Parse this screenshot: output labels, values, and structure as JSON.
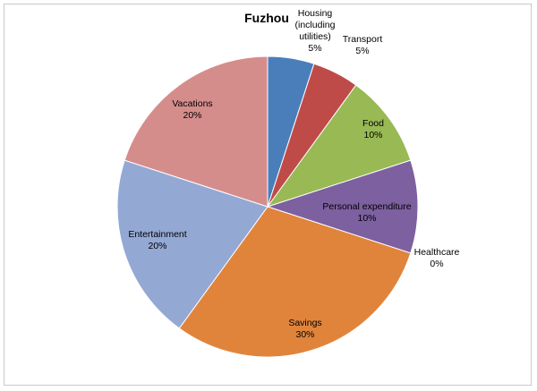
{
  "chart_data": {
    "type": "pie",
    "title": "Fuzhou",
    "categories": [
      "Housing (including utilities)",
      "Transport",
      "Food",
      "Personal expenditure",
      "Healthcare",
      "Savings",
      "Entertainment",
      "Vacations"
    ],
    "values": [
      5,
      5,
      10,
      10,
      0,
      30,
      20,
      20
    ],
    "series": [
      {
        "name": "Housing (including utilities)",
        "value": 5,
        "label_lines": [
          "Housing",
          "(including",
          "utilities)"
        ],
        "value_label": "5%",
        "color": "#4a7ebb"
      },
      {
        "name": "Transport",
        "value": 5,
        "label_lines": [
          "Transport"
        ],
        "value_label": "5%",
        "color": "#be4b48"
      },
      {
        "name": "Food",
        "value": 10,
        "label_lines": [
          "Food"
        ],
        "value_label": "10%",
        "color": "#98b954"
      },
      {
        "name": "Personal expenditure",
        "value": 10,
        "label_lines": [
          "Personal expenditure"
        ],
        "value_label": "10%",
        "color": "#7d60a0"
      },
      {
        "name": "Healthcare",
        "value": 0,
        "label_lines": [
          "Healthcare"
        ],
        "value_label": "0%",
        "color": "#46aac5"
      },
      {
        "name": "Savings",
        "value": 30,
        "label_lines": [
          "Savings"
        ],
        "value_label": "30%",
        "color": "#e0843c"
      },
      {
        "name": "Entertainment",
        "value": 20,
        "label_lines": [
          "Entertainment"
        ],
        "value_label": "20%",
        "color": "#94a8d4"
      },
      {
        "name": "Vacations",
        "value": 20,
        "label_lines": [
          "Vacations"
        ],
        "value_label": "20%",
        "color": "#d58d8c"
      }
    ],
    "legend": "none",
    "start_angle": "12 o'clock",
    "direction": "clockwise"
  }
}
